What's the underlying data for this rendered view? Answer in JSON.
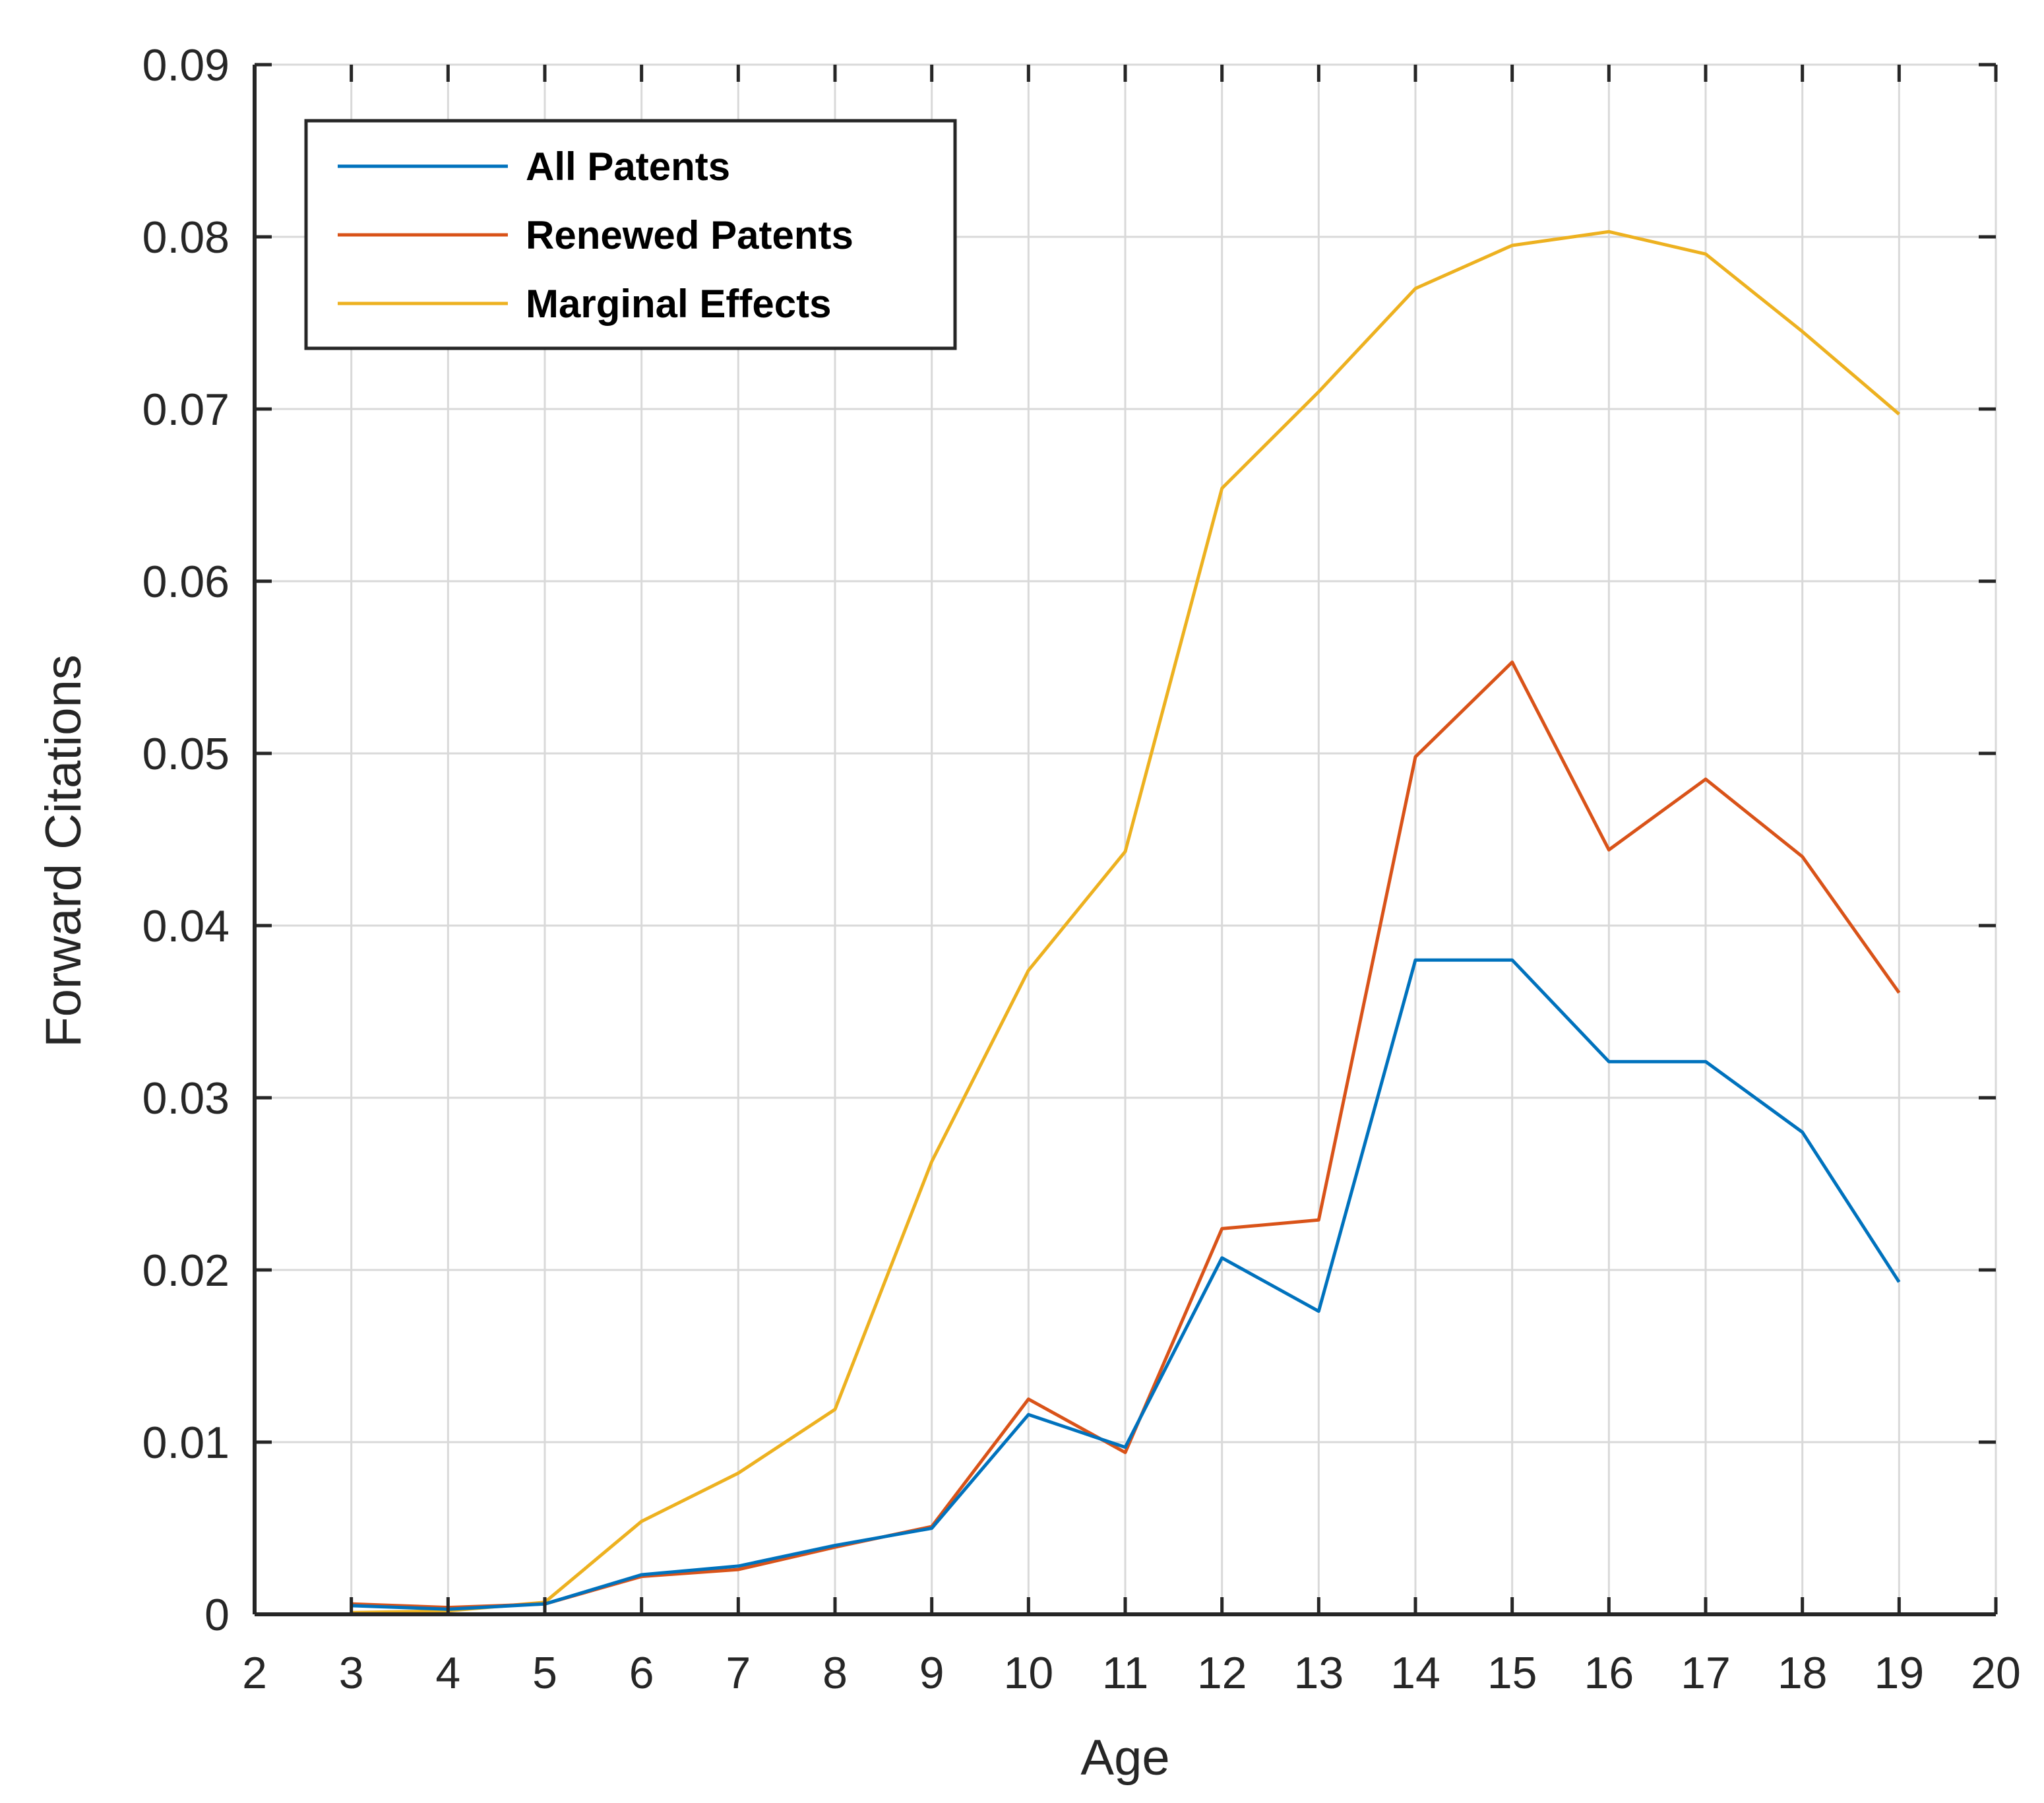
{
  "chart_data": {
    "type": "line",
    "title": "",
    "xlabel": "Age",
    "ylabel": "Forward Citations",
    "xlim": [
      2,
      20
    ],
    "ylim": [
      0,
      0.09
    ],
    "xticks": [
      "2",
      "3",
      "4",
      "5",
      "6",
      "7",
      "8",
      "9",
      "10",
      "11",
      "12",
      "13",
      "14",
      "15",
      "16",
      "17",
      "18",
      "19",
      "20"
    ],
    "yticks": [
      "0",
      "0.01",
      "0.02",
      "0.03",
      "0.04",
      "0.05",
      "0.06",
      "0.07",
      "0.08",
      "0.09"
    ],
    "grid": true,
    "legend_position": "top-left",
    "x": [
      3,
      4,
      5,
      6,
      7,
      8,
      9,
      10,
      11,
      12,
      13,
      14,
      15,
      16,
      17,
      18,
      19
    ],
    "series": [
      {
        "name": "All Patents",
        "color": "#0072BD",
        "values": [
          0.0005,
          0.0003,
          0.0006,
          0.0023,
          0.0028,
          0.004,
          0.005,
          0.0116,
          0.0097,
          0.0207,
          0.0176,
          0.038,
          0.038,
          0.0321,
          0.0321,
          0.028,
          0.0193
        ]
      },
      {
        "name": "Renewed Patents",
        "color": "#D95319",
        "values": [
          0.0006,
          0.0004,
          0.0006,
          0.0022,
          0.0026,
          0.0039,
          0.0051,
          0.0125,
          0.0094,
          0.0224,
          0.0229,
          0.0498,
          0.0553,
          0.0444,
          0.0485,
          0.044,
          0.0361
        ]
      },
      {
        "name": "Marginal Effects",
        "color": "#EDB120",
        "values": [
          0.0001,
          0.0002,
          0.0007,
          0.0054,
          0.0082,
          0.0119,
          0.0263,
          0.0374,
          0.0443,
          0.0654,
          0.071,
          0.077,
          0.0795,
          0.0803,
          0.079,
          0.0745,
          0.0697
        ]
      }
    ]
  }
}
